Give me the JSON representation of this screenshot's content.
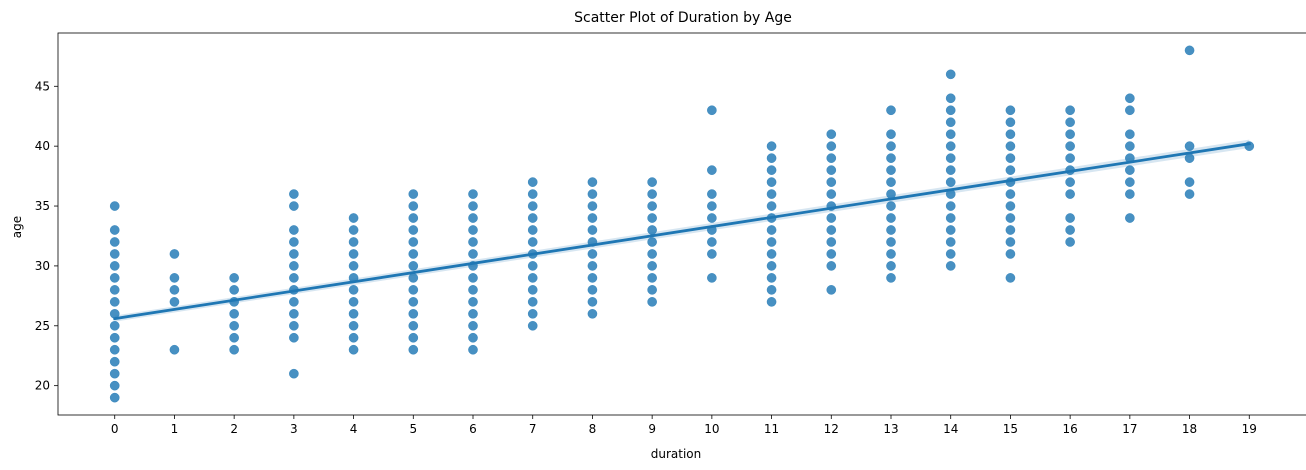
{
  "chart_data": {
    "type": "scatter",
    "title": "Scatter Plot of Duration by Age",
    "xlabel": "duration",
    "ylabel": "age",
    "xlim": [
      -0.95,
      19.95
    ],
    "ylim": [
      17.55,
      49.45
    ],
    "xticks": [
      0,
      1,
      2,
      3,
      4,
      5,
      6,
      7,
      8,
      9,
      10,
      11,
      12,
      13,
      14,
      15,
      16,
      17,
      18,
      19
    ],
    "yticks": [
      20,
      25,
      30,
      35,
      40,
      45
    ],
    "grid": false,
    "legend": "none",
    "colors": {
      "points": "#1f77b4",
      "line": "#1f77b4",
      "ci_band": "#1f77b4"
    },
    "regression": {
      "x": [
        0,
        19
      ],
      "y": [
        25.6,
        40.2
      ],
      "ci_halfwidth": [
        0.25,
        0.35
      ]
    },
    "points": [
      {
        "x": 0,
        "y": [
          19,
          20,
          21,
          22,
          23,
          24,
          25,
          26,
          27,
          28,
          29,
          30,
          31,
          32,
          33,
          35
        ]
      },
      {
        "x": 1,
        "y": [
          23,
          27,
          28,
          29,
          31
        ]
      },
      {
        "x": 2,
        "y": [
          23,
          24,
          25,
          26,
          27,
          28,
          29
        ]
      },
      {
        "x": 3,
        "y": [
          21,
          24,
          25,
          26,
          27,
          28,
          29,
          30,
          31,
          32,
          33,
          35,
          36
        ]
      },
      {
        "x": 4,
        "y": [
          23,
          24,
          25,
          26,
          27,
          28,
          29,
          30,
          31,
          32,
          33,
          34
        ]
      },
      {
        "x": 5,
        "y": [
          23,
          24,
          25,
          26,
          27,
          28,
          29,
          30,
          31,
          32,
          33,
          34,
          35,
          36
        ]
      },
      {
        "x": 6,
        "y": [
          23,
          24,
          25,
          26,
          27,
          28,
          29,
          30,
          31,
          32,
          33,
          34,
          35,
          36
        ]
      },
      {
        "x": 7,
        "y": [
          25,
          26,
          27,
          28,
          29,
          30,
          31,
          32,
          33,
          34,
          35,
          36,
          37
        ]
      },
      {
        "x": 8,
        "y": [
          26,
          27,
          28,
          29,
          30,
          31,
          32,
          33,
          34,
          35,
          36,
          37
        ]
      },
      {
        "x": 9,
        "y": [
          27,
          28,
          29,
          30,
          31,
          32,
          33,
          34,
          35,
          36,
          37
        ]
      },
      {
        "x": 10,
        "y": [
          29,
          31,
          32,
          33,
          34,
          35,
          36,
          38,
          43
        ]
      },
      {
        "x": 11,
        "y": [
          27,
          28,
          29,
          30,
          31,
          32,
          33,
          34,
          35,
          36,
          37,
          38,
          39,
          40
        ]
      },
      {
        "x": 12,
        "y": [
          28,
          30,
          31,
          32,
          33,
          34,
          35,
          36,
          37,
          38,
          39,
          40,
          41
        ]
      },
      {
        "x": 13,
        "y": [
          29,
          30,
          31,
          32,
          33,
          34,
          35,
          36,
          37,
          38,
          39,
          40,
          41,
          43
        ]
      },
      {
        "x": 14,
        "y": [
          30,
          31,
          32,
          33,
          34,
          35,
          36,
          37,
          38,
          39,
          40,
          41,
          42,
          43,
          44,
          46
        ]
      },
      {
        "x": 15,
        "y": [
          29,
          31,
          32,
          33,
          34,
          35,
          36,
          37,
          38,
          39,
          40,
          41,
          42,
          43
        ]
      },
      {
        "x": 16,
        "y": [
          32,
          33,
          34,
          36,
          37,
          38,
          39,
          40,
          41,
          42,
          43
        ]
      },
      {
        "x": 17,
        "y": [
          34,
          36,
          37,
          38,
          39,
          40,
          41,
          43,
          44
        ]
      },
      {
        "x": 18,
        "y": [
          36,
          37,
          39,
          40,
          48
        ]
      },
      {
        "x": 19,
        "y": [
          40
        ]
      }
    ]
  }
}
